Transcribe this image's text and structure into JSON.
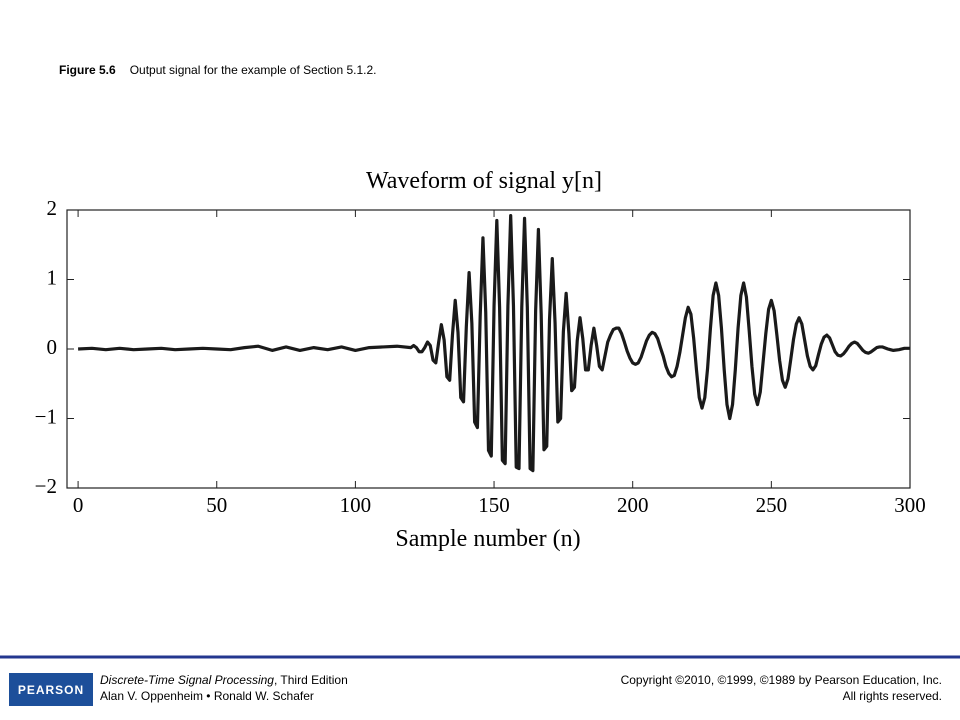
{
  "caption": {
    "label": "Figure 5.6",
    "text": "Output signal for the example of Section 5.1.2."
  },
  "footer": {
    "logo": "PEARSON",
    "book_title": "Discrete-Time Signal Processing",
    "edition": ", Third Edition",
    "authors": "Alan V. Oppenheim • Ronald W. Schafer",
    "copyright": "Copyright ©2010, ©1999, ©1989 by Pearson Education, Inc.",
    "rights": "All rights reserved."
  },
  "chart_data": {
    "type": "line",
    "title": "Waveform of signal y[n]",
    "xlabel": "Sample number (n)",
    "color": "#1a1a1a",
    "xlim": [
      -4,
      300
    ],
    "ylim": [
      -2,
      2
    ],
    "xticks": [
      0,
      50,
      100,
      150,
      200,
      250,
      300
    ],
    "yticks": [
      {
        "value": -2,
        "label": "−2"
      },
      {
        "value": -1,
        "label": "−1"
      },
      0,
      1,
      2
    ],
    "x": [
      0,
      5,
      10,
      15,
      20,
      25,
      30,
      35,
      40,
      45,
      50,
      55,
      60,
      65,
      70,
      75,
      80,
      85,
      90,
      95,
      100,
      105,
      110,
      115,
      120,
      121,
      122,
      123,
      124,
      125,
      126,
      127,
      128,
      129,
      130,
      131,
      132,
      133,
      134,
      135,
      136,
      137,
      138,
      139,
      140,
      141,
      142,
      143,
      144,
      145,
      146,
      147,
      148,
      149,
      150,
      151,
      152,
      153,
      154,
      155,
      156,
      157,
      158,
      159,
      160,
      161,
      162,
      163,
      164,
      165,
      166,
      167,
      168,
      169,
      170,
      171,
      172,
      173,
      174,
      175,
      176,
      177,
      178,
      179,
      180,
      181,
      182,
      183,
      184,
      185,
      186,
      187,
      188,
      189,
      190,
      191,
      192,
      193,
      194,
      195,
      196,
      197,
      198,
      199,
      200,
      201,
      202,
      203,
      204,
      205,
      206,
      207,
      208,
      209,
      210,
      211,
      212,
      213,
      214,
      215,
      216,
      217,
      218,
      219,
      220,
      221,
      222,
      223,
      224,
      225,
      226,
      227,
      228,
      229,
      230,
      231,
      232,
      233,
      234,
      235,
      236,
      237,
      238,
      239,
      240,
      241,
      242,
      243,
      244,
      245,
      246,
      247,
      248,
      249,
      250,
      251,
      252,
      253,
      254,
      255,
      256,
      257,
      258,
      259,
      260,
      261,
      262,
      263,
      264,
      265,
      266,
      267,
      268,
      269,
      270,
      271,
      272,
      273,
      274,
      275,
      276,
      277,
      278,
      279,
      280,
      281,
      282,
      283,
      284,
      285,
      286,
      287,
      288,
      289,
      290,
      292,
      294,
      296,
      298,
      300
    ],
    "values": [
      0,
      0.01,
      -0.01,
      0.01,
      -0.01,
      0,
      0.01,
      -0.01,
      0,
      0.01,
      0,
      -0.01,
      0.02,
      0.04,
      -0.02,
      0.03,
      -0.02,
      0.02,
      -0.01,
      0.03,
      -0.02,
      0.02,
      0.03,
      0.04,
      0.02,
      0.05,
      0.02,
      -0.04,
      -0.04,
      0.02,
      0.1,
      0.05,
      -0.16,
      -0.2,
      0.09,
      0.35,
      0.13,
      -0.4,
      -0.45,
      0.2,
      0.7,
      0.24,
      -0.7,
      -0.76,
      0.32,
      1.1,
      0.37,
      -1.05,
      -1.13,
      0.47,
      1.6,
      0.53,
      -1.46,
      -1.54,
      0.62,
      1.85,
      0.6,
      -1.6,
      -1.65,
      0.62,
      1.92,
      0.62,
      -1.7,
      -1.72,
      0.6,
      1.88,
      0.6,
      -1.72,
      -1.75,
      0.55,
      1.72,
      0.5,
      -1.45,
      -1.4,
      0.42,
      1.3,
      0.38,
      -1.05,
      -1.0,
      0.25,
      0.8,
      0.22,
      -0.6,
      -0.55,
      0.12,
      0.45,
      0.15,
      -0.3,
      -0.3,
      0.05,
      0.3,
      0.05,
      -0.25,
      -0.3,
      -0.1,
      0.1,
      0.2,
      0.28,
      0.3,
      0.3,
      0.22,
      0.1,
      -0.03,
      -0.13,
      -0.2,
      -0.22,
      -0.2,
      -0.12,
      0,
      0.12,
      0.2,
      0.24,
      0.22,
      0.15,
      0.02,
      -0.1,
      -0.25,
      -0.35,
      -0.4,
      -0.38,
      -0.25,
      -0.05,
      0.2,
      0.45,
      0.6,
      0.5,
      0.15,
      -0.3,
      -0.7,
      -0.85,
      -0.7,
      -0.28,
      0.28,
      0.77,
      0.95,
      0.77,
      0.3,
      -0.3,
      -0.8,
      -1.0,
      -0.8,
      -0.3,
      0.3,
      0.77,
      0.95,
      0.75,
      0.27,
      -0.25,
      -0.65,
      -0.8,
      -0.62,
      -0.2,
      0.22,
      0.57,
      0.7,
      0.55,
      0.2,
      -0.17,
      -0.45,
      -0.55,
      -0.43,
      -0.15,
      0.14,
      0.36,
      0.45,
      0.36,
      0.13,
      -0.1,
      -0.25,
      -0.3,
      -0.24,
      -0.08,
      0.07,
      0.17,
      0.2,
      0.16,
      0.06,
      -0.04,
      -0.09,
      -0.1,
      -0.07,
      -0.02,
      0.04,
      0.08,
      0.1,
      0.08,
      0.03,
      -0.02,
      -0.05,
      -0.06,
      -0.04,
      -0.01,
      0.02,
      0.03,
      0.03,
      0,
      -0.02,
      -0.01,
      0.01,
      0.01
    ]
  }
}
